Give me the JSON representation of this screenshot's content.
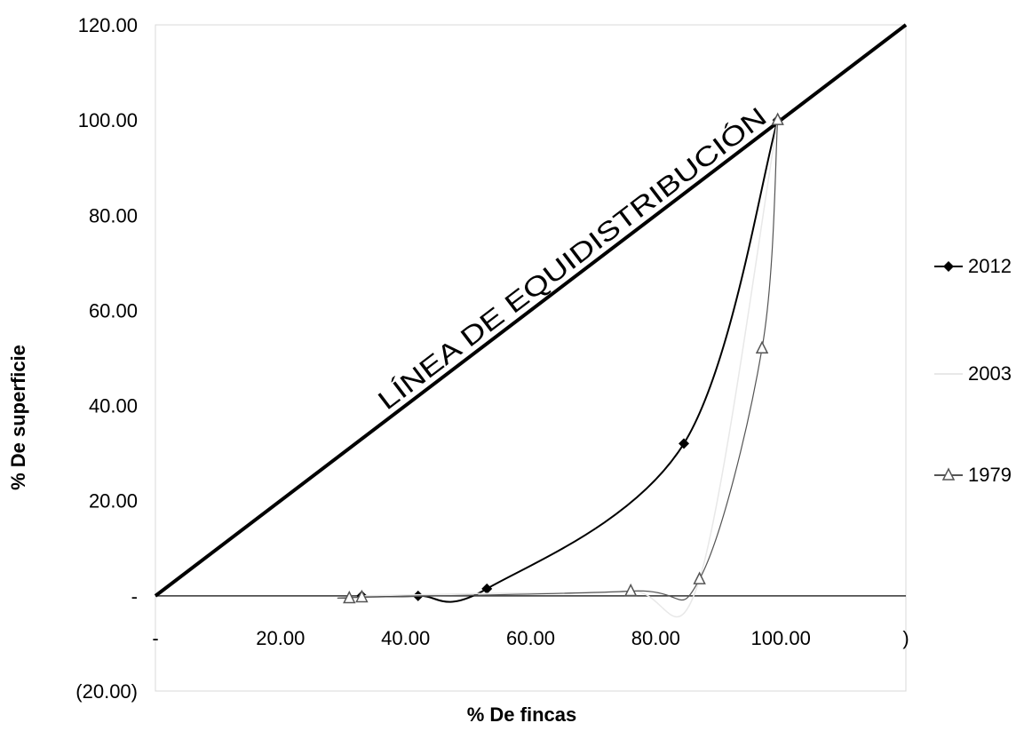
{
  "chart_data": {
    "type": "line",
    "xlabel": "% De fincas",
    "ylabel": "% De superficie",
    "xlim": [
      0,
      120
    ],
    "ylim": [
      -20,
      120
    ],
    "x_tick_values": [
      0,
      20,
      40,
      60,
      80,
      100,
      120
    ],
    "x_tick_labels": [
      "-",
      "20.00",
      "40.00",
      "60.00",
      "80.00",
      "100.00",
      ")"
    ],
    "y_tick_values": [
      120,
      100,
      80,
      60,
      40,
      20,
      0,
      -20
    ],
    "y_tick_labels": [
      "120.00",
      "100.00",
      "80.00",
      "60.00",
      "40.00",
      "20.00",
      "-",
      "(20.00)"
    ],
    "legend_position": "right",
    "annotation": "LÍNEA DE EQUIDISTRIBUCIÓN",
    "equidistribution_line": {
      "x": [
        0,
        120
      ],
      "y": [
        0,
        120
      ]
    },
    "series": [
      {
        "name": "2012",
        "marker": "diamond",
        "color": "#000000",
        "x": [
          33,
          42,
          53,
          84.5,
          99.5
        ],
        "y": [
          0,
          0,
          1.5,
          32,
          100
        ]
      },
      {
        "name": "2003",
        "marker": "none",
        "color": "#e8e8e8",
        "x": [
          33,
          53,
          76,
          87,
          99.5
        ],
        "y": [
          0,
          0.5,
          1,
          3.5,
          100
        ]
      },
      {
        "name": "1979",
        "marker": "triangle",
        "color": "#555555",
        "x": [
          31,
          33,
          76,
          87,
          97,
          99.5
        ],
        "y": [
          -0.5,
          -0.3,
          1,
          3.5,
          52,
          100
        ]
      }
    ]
  }
}
